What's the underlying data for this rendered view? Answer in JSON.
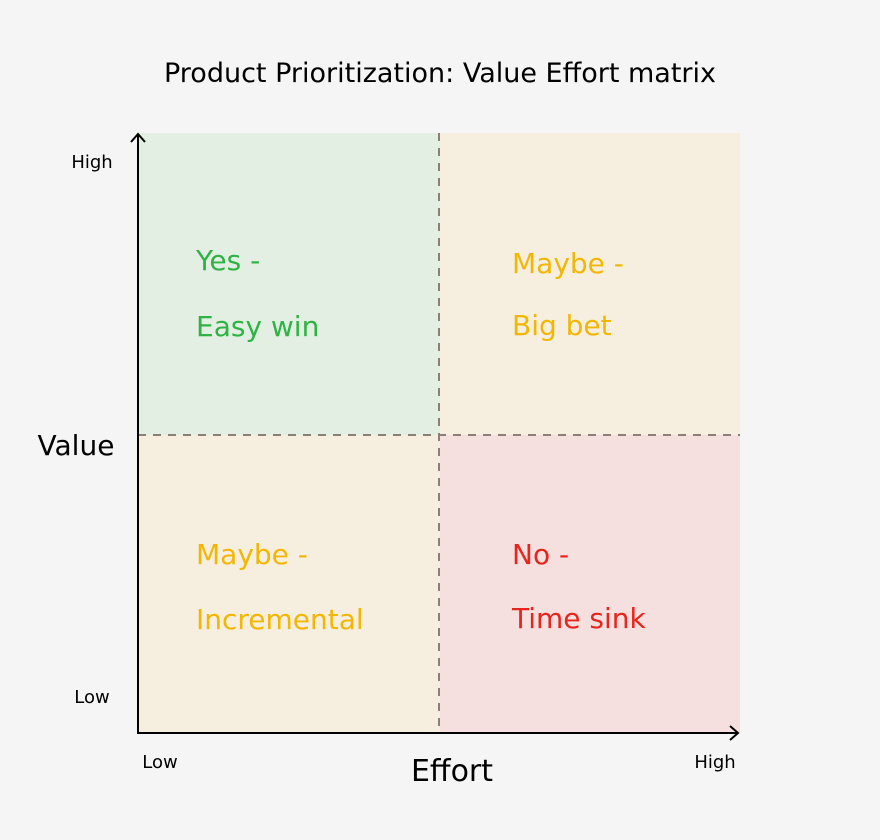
{
  "title": "Product Prioritization: Value Effort matrix",
  "axes": {
    "x_label": "Effort",
    "y_label": "Value",
    "x_low": "Low",
    "x_high": "High",
    "y_low": "Low",
    "y_high": "High"
  },
  "quadrants": [
    {
      "id": "top-left",
      "line1": "Yes -",
      "line2": "Easy win",
      "fill": "#e2efe2",
      "text_color": "#2fb344"
    },
    {
      "id": "top-right",
      "line1": "Maybe -",
      "line2": "Big bet",
      "fill": "#f6efdf",
      "text_color": "#f2b705"
    },
    {
      "id": "bottom-left",
      "line1": "Maybe -",
      "line2": "Incremental",
      "fill": "#f6efdf",
      "text_color": "#f2b705"
    },
    {
      "id": "bottom-right",
      "line1": "No -",
      "line2": "Time sink",
      "fill": "#f5e0df",
      "text_color": "#e8251c"
    }
  ],
  "colors": {
    "background": "#f5f5f5",
    "axis": "#000000",
    "divider": "#8a8078"
  }
}
